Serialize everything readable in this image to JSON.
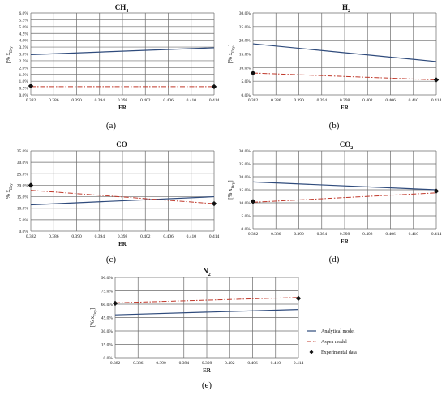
{
  "legend": {
    "analytical": "Analytical model",
    "aspen": "Aspen model",
    "experimental": "Experimental data"
  },
  "colors": {
    "analytical": "#2f4b7c",
    "aspen": "#c0392b",
    "experimental": "#111111",
    "grid": "#6b6b6b"
  },
  "chart_data": [
    {
      "id": "a",
      "type": "line",
      "title": "CH",
      "title_sub": "4",
      "panel_label": "(a)",
      "xlabel": "ER",
      "ylabel": "[% x",
      "ylabel_sub": "Dry",
      "ylabel_end": "]",
      "x_ticks": [
        "0.382",
        "0.386",
        "0.390",
        "0.394",
        "0.398",
        "0.402",
        "0.406",
        "0.410",
        "0.414"
      ],
      "y_ticks": [
        "0.0%",
        "0.5%",
        "1.0%",
        "1.5%",
        "2.0%",
        "2.5%",
        "3.0%",
        "3.5%",
        "4.0%",
        "4.5%",
        "5.0%",
        "5.5%",
        "6.0%"
      ],
      "xlim": [
        0.382,
        0.414
      ],
      "ylim": [
        0,
        6
      ],
      "series": [
        {
          "key": "analytical",
          "x": [
            0.382,
            0.414
          ],
          "y": [
            2.95,
            3.45
          ]
        },
        {
          "key": "aspen",
          "x": [
            0.382,
            0.414
          ],
          "y": [
            0.6,
            0.6
          ]
        },
        {
          "key": "experimental",
          "x": [
            0.382,
            0.414
          ],
          "y": [
            0.65,
            0.6
          ]
        }
      ]
    },
    {
      "id": "b",
      "type": "line",
      "title": "H",
      "title_sub": "2",
      "panel_label": "(b)",
      "xlabel": "ER",
      "ylabel": "[% x",
      "ylabel_sub": "Dry",
      "ylabel_end": "]",
      "x_ticks": [
        "0.382",
        "0.386",
        "0.390",
        "0.394",
        "0.398",
        "0.402",
        "0.406",
        "0.410",
        "0.414"
      ],
      "y_ticks": [
        "0.0%",
        "5.0%",
        "10.0%",
        "15.0%",
        "20.0%",
        "25.0%",
        "30.0%"
      ],
      "xlim": [
        0.382,
        0.414
      ],
      "ylim": [
        0,
        30
      ],
      "series": [
        {
          "key": "analytical",
          "x": [
            0.382,
            0.414
          ],
          "y": [
            18.7,
            12.2
          ]
        },
        {
          "key": "aspen",
          "x": [
            0.382,
            0.414
          ],
          "y": [
            8.0,
            5.5
          ]
        },
        {
          "key": "experimental",
          "x": [
            0.382,
            0.414
          ],
          "y": [
            8.0,
            5.5
          ]
        }
      ]
    },
    {
      "id": "c",
      "type": "line",
      "title": "CO",
      "title_sub": "",
      "panel_label": "(c)",
      "xlabel": "ER",
      "ylabel": "[% x",
      "ylabel_sub": "Dry",
      "ylabel_end": "]",
      "x_ticks": [
        "0.382",
        "0.386",
        "0.390",
        "0.394",
        "0.398",
        "0.402",
        "0.406",
        "0.410",
        "0.414"
      ],
      "y_ticks": [
        "0.0%",
        "5.0%",
        "10.0%",
        "15.0%",
        "20.0%",
        "25.0%",
        "30.0%",
        "35.0%"
      ],
      "xlim": [
        0.382,
        0.414
      ],
      "ylim": [
        0,
        35
      ],
      "series": [
        {
          "key": "analytical",
          "x": [
            0.382,
            0.414
          ],
          "y": [
            11.5,
            15.0
          ]
        },
        {
          "key": "aspen",
          "x": [
            0.382,
            0.414
          ],
          "y": [
            17.8,
            12.0
          ]
        },
        {
          "key": "experimental",
          "x": [
            0.382,
            0.414
          ],
          "y": [
            20.0,
            12.0
          ]
        }
      ]
    },
    {
      "id": "d",
      "type": "line",
      "title": "CO",
      "title_sub": "2",
      "panel_label": "(d)",
      "xlabel": "ER",
      "ylabel": "[% x",
      "ylabel_sub": "Dry",
      "ylabel_end": "]",
      "x_ticks": [
        "0.382",
        "0.386",
        "0.390",
        "0.394",
        "0.398",
        "0.402",
        "0.406",
        "0.410",
        "0.414"
      ],
      "y_ticks": [
        "0.0%",
        "5.0%",
        "10.0%",
        "15.0%",
        "20.0%",
        "25.0%",
        "30.0%"
      ],
      "xlim": [
        0.382,
        0.414
      ],
      "ylim": [
        0,
        30
      ],
      "series": [
        {
          "key": "analytical",
          "x": [
            0.382,
            0.414
          ],
          "y": [
            18.0,
            15.0
          ]
        },
        {
          "key": "aspen",
          "x": [
            0.382,
            0.414
          ],
          "y": [
            10.2,
            13.8
          ]
        },
        {
          "key": "experimental",
          "x": [
            0.382,
            0.414
          ],
          "y": [
            10.5,
            14.5
          ]
        }
      ]
    },
    {
      "id": "e",
      "type": "line",
      "title": "N",
      "title_sub": "2",
      "panel_label": "(e)",
      "xlabel": "ER",
      "ylabel": "[% x",
      "ylabel_sub": "Dry",
      "ylabel_end": "]",
      "x_ticks": [
        "0.382",
        "0.386",
        "0.390",
        "0.394",
        "0.398",
        "0.402",
        "0.406",
        "0.410",
        "0.414"
      ],
      "y_ticks": [
        "0.0%",
        "15.0%",
        "30.0%",
        "45.0%",
        "60.0%",
        "75.0%",
        "90.0%"
      ],
      "xlim": [
        0.382,
        0.414
      ],
      "ylim": [
        0,
        90
      ],
      "legend_position": "right",
      "series": [
        {
          "key": "analytical",
          "x": [
            0.382,
            0.414
          ],
          "y": [
            48.0,
            54.0
          ]
        },
        {
          "key": "aspen",
          "x": [
            0.382,
            0.414
          ],
          "y": [
            61.5,
            67.5
          ]
        },
        {
          "key": "experimental",
          "x": [
            0.382,
            0.414
          ],
          "y": [
            61.0,
            66.5
          ]
        }
      ]
    }
  ]
}
